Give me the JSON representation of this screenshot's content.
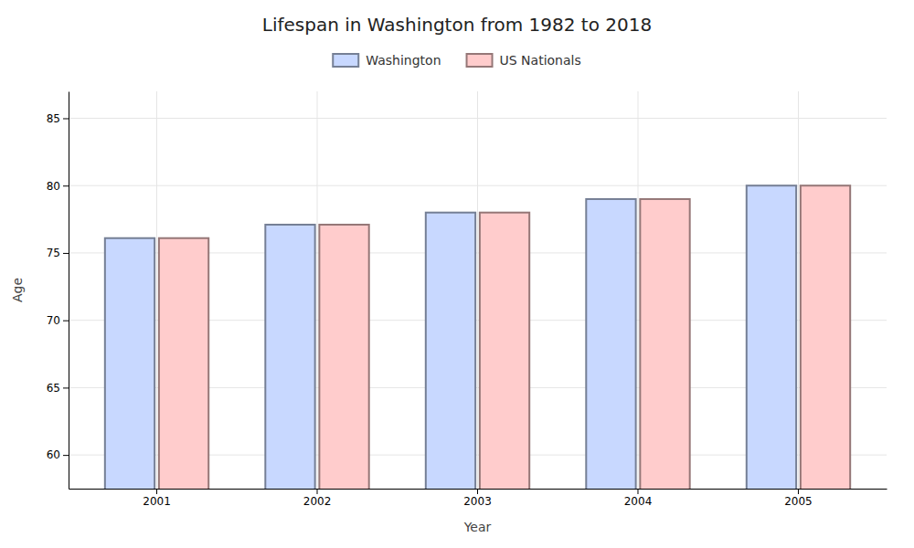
{
  "chart_data": {
    "type": "bar",
    "title": "Lifespan in Washington from 1982 to 2018",
    "xlabel": "Year",
    "ylabel": "Age",
    "categories": [
      "2001",
      "2002",
      "2003",
      "2004",
      "2005"
    ],
    "series": [
      {
        "name": "Washington",
        "color": "#c8d8ff",
        "values": [
          76.1,
          77.1,
          78.0,
          79.0,
          80.0
        ]
      },
      {
        "name": "US Nationals",
        "color": "#ffcccc",
        "values": [
          76.1,
          77.1,
          78.0,
          79.0,
          80.0
        ]
      }
    ],
    "ylim": [
      57.5,
      87
    ],
    "yticks": [
      60,
      65,
      70,
      75,
      80,
      85
    ],
    "grid": true,
    "legend": "top"
  }
}
